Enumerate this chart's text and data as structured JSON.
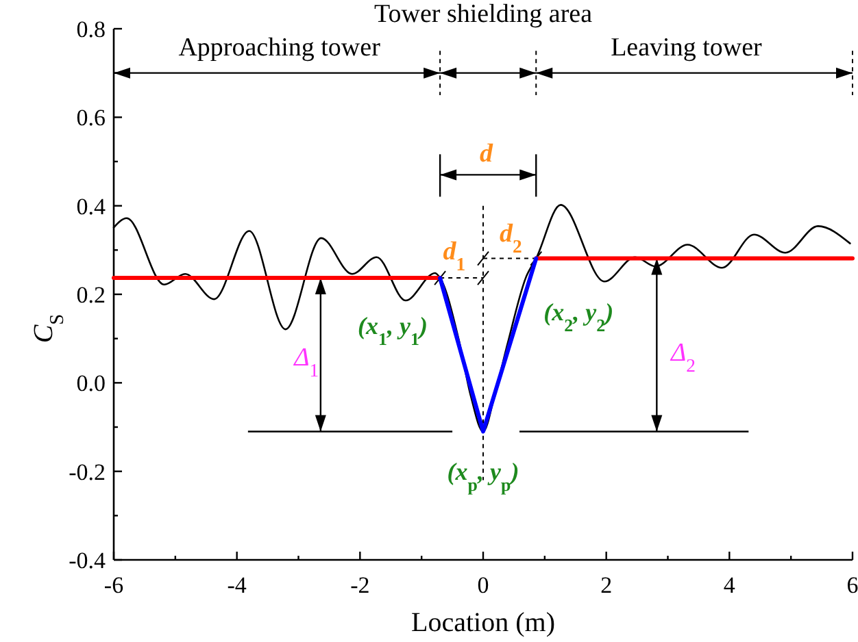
{
  "chart_data": {
    "type": "line",
    "title": "Tower shielding area",
    "xlabel": "Location (m)",
    "ylabel": "C$_{S}$",
    "xlim": [
      -6,
      6
    ],
    "ylim": [
      -0.4,
      0.8
    ],
    "xticks": [
      -6,
      {
        "value": -5,
        "label": null
      },
      -4,
      {
        "value": -3,
        "label": null
      },
      -2,
      {
        "value": -1,
        "label": null
      },
      0,
      {
        "value": 1,
        "label": null
      },
      2,
      {
        "value": 3,
        "label": null
      },
      4,
      {
        "value": 5,
        "label": null
      },
      6
    ],
    "yticks": [
      -0.4,
      {
        "value": -0.3,
        "label": null
      },
      -0.2,
      {
        "value": -0.1,
        "label": null
      },
      {
        "value": 0,
        "label": "0.0"
      },
      {
        "value": 0.1,
        "label": null
      },
      0.2,
      {
        "value": 0.3,
        "label": null
      },
      0.4,
      {
        "value": 0.5,
        "label": null
      },
      0.6,
      {
        "value": 0.7,
        "label": null
      },
      0.8
    ],
    "series": [
      {
        "color": "#000000",
        "x": [
          -6.0,
          -5.79,
          -5.18,
          -4.84,
          -4.37,
          -3.8,
          -3.21,
          -2.63,
          -2.13,
          -1.73,
          -1.26,
          -0.78,
          -0.7,
          -0.4,
          -0.2,
          0,
          0.2,
          0.4,
          0.7,
          0.86,
          1.26,
          1.97,
          2.47,
          2.8,
          3.32,
          3.88,
          4.4,
          4.91,
          5.44,
          5.96
        ],
        "values": [
          0.351,
          0.372,
          0.222,
          0.246,
          0.189,
          0.343,
          0.121,
          0.327,
          0.246,
          0.284,
          0.186,
          0.248,
          0.237,
          0.1,
          -0.03,
          -0.11,
          -0.02,
          0.09,
          0.24,
          0.281,
          0.402,
          0.229,
          0.284,
          0.263,
          0.312,
          0.26,
          0.335,
          0.294,
          0.354,
          0.315
        ]
      },
      {
        "color": "#ff0000",
        "x": [
          -6,
          -0.7
        ],
        "values": [
          0.237,
          0.237
        ]
      },
      {
        "color": "#ff0000",
        "x": [
          0.86,
          6
        ],
        "values": [
          0.281,
          0.281
        ]
      },
      {
        "color": "#0000ff",
        "x": [
          -0.7,
          0,
          0.86
        ],
        "values": [
          0.237,
          -0.11,
          0.281
        ]
      }
    ],
    "annotations": [
      "Approaching tower",
      "Leaving tower",
      "d",
      "d$_{1}$",
      "d$_{2}$",
      "(x$_{1}$, y$_{1}$)",
      "(x$_{2}$, y$_{2}$)",
      "(x$_{p}$, y$_{p}$)",
      "Δ$_{1}$",
      "Δ$_{2}$"
    ]
  }
}
